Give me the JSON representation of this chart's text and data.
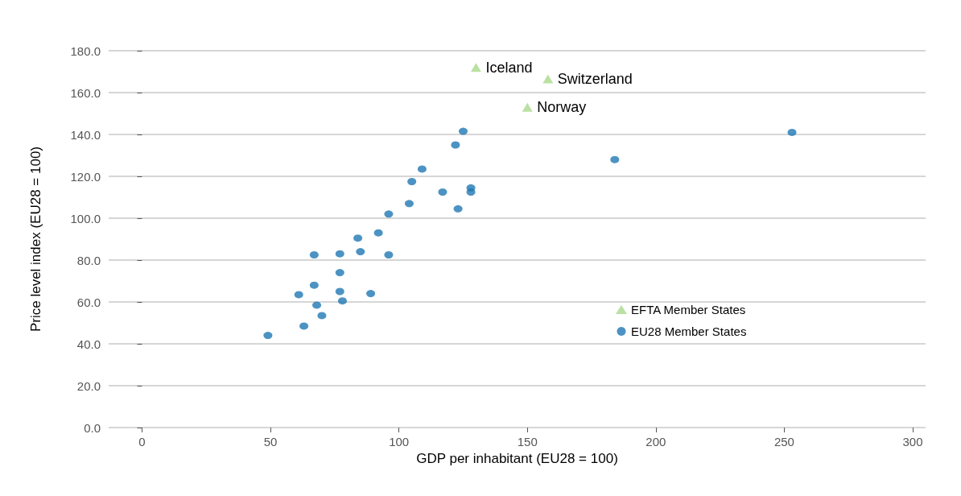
{
  "chart_data": {
    "type": "scatter",
    "xlabel": "GDP per inhabitant (EU28 = 100)",
    "ylabel": "Price level index (EU28 = 100)",
    "xlim": [
      -13,
      305
    ],
    "xticks": [
      0,
      50,
      100,
      150,
      200,
      250,
      300
    ],
    "ylim": [
      0,
      180
    ],
    "yticks": [
      {
        "value": 0,
        "label": "0.0"
      },
      {
        "value": 20,
        "label": "20.0"
      },
      {
        "value": 40,
        "label": "40.0"
      },
      {
        "value": 60,
        "label": "60.0"
      },
      {
        "value": 80,
        "label": "80.0"
      },
      {
        "value": 100,
        "label": "100.0"
      },
      {
        "value": 120,
        "label": "120.0"
      },
      {
        "value": 140,
        "label": "140.0"
      },
      {
        "value": 160,
        "label": "160.0"
      },
      {
        "value": 180,
        "label": "180.0"
      }
    ],
    "grid": "y",
    "legend": "bottom right",
    "series": [
      {
        "name": "EFTA Member States",
        "color": "#a9d98c",
        "marker": "triangle",
        "x": [
          130,
          158,
          150
        ],
        "values": [
          172,
          166.5,
          153
        ]
      },
      {
        "name": "EU28 Member States",
        "color": "#1f78b4",
        "marker": "circle",
        "x": [
          49,
          63,
          70,
          68,
          61,
          78,
          77,
          67,
          89,
          77,
          67,
          77,
          85,
          84,
          96,
          92,
          96,
          104,
          105,
          109,
          117,
          123,
          128,
          128,
          122,
          125,
          184,
          253
        ],
        "values": [
          44,
          48.5,
          53.5,
          58.5,
          63.5,
          60.5,
          65,
          68,
          64,
          74,
          82.5,
          83,
          84,
          90.5,
          82.5,
          93,
          102,
          107,
          117.5,
          123.5,
          112.5,
          104.5,
          112.5,
          114.5,
          135,
          141.5,
          128,
          141
        ]
      }
    ],
    "annotations": [
      {
        "text": "Iceland",
        "x": 130,
        "y": 172
      },
      {
        "text": "Switzerland",
        "x": 158,
        "y": 166.5
      },
      {
        "text": "Norway",
        "x": 150,
        "y": 153
      }
    ]
  }
}
